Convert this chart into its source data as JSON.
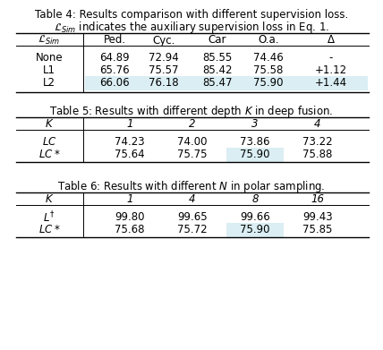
{
  "bg_color": "#ffffff",
  "highlight_color": "#daeef3",
  "fig_width": 4.28,
  "fig_height": 3.91,
  "dpi": 100,
  "table4": {
    "caption_line1": "Table 4: Results comparison with different supervision loss.",
    "caption_line2": "$\\mathcal{L}_{Sim}$ indicates the auxiliary supervision loss in Eq. 1.",
    "col_headers": [
      "$\\mathcal{L}_{Sim}$",
      "Ped.",
      "Cyc.",
      "Car",
      "O.a.",
      "$\\Delta$"
    ],
    "col_italic": [
      true,
      false,
      false,
      false,
      false,
      false
    ],
    "rows": [
      [
        "None",
        "64.89",
        "72.94",
        "85.55",
        "74.46",
        "-"
      ],
      [
        "L1",
        "65.76",
        "75.57",
        "85.42",
        "75.58",
        "+1.12"
      ],
      [
        "L2",
        "66.06",
        "76.18",
        "85.47",
        "75.90",
        "+1.44"
      ]
    ],
    "highlight_row": 2,
    "highlight_full_row": true
  },
  "table5": {
    "caption": "Table 5: Results with different depth $K$ in deep fusion.",
    "col_headers": [
      "$K$",
      "1",
      "2",
      "3",
      "4"
    ],
    "col_italic": [
      true,
      false,
      false,
      false,
      false
    ],
    "rows": [
      [
        "$LC$",
        "74.23",
        "74.00",
        "73.86",
        "73.22"
      ],
      [
        "$LC*$",
        "75.64",
        "75.75",
        "75.90",
        "75.88"
      ]
    ],
    "row_italic": [
      true,
      true
    ],
    "highlight_row": 1,
    "highlight_col": 3
  },
  "table6": {
    "caption": "Table 6: Results with different $N$ in polar sampling.",
    "col_headers": [
      "$K$",
      "1",
      "4",
      "8",
      "16"
    ],
    "col_italic": [
      true,
      false,
      false,
      false,
      false
    ],
    "rows": [
      [
        "$L^{\\dagger}$",
        "99.80",
        "99.65",
        "99.66",
        "99.43"
      ],
      [
        "$LC*$",
        "75.68",
        "75.72",
        "75.90",
        "75.85"
      ]
    ],
    "row_italic": [
      true,
      true
    ],
    "highlight_row": 1,
    "highlight_col": 3
  }
}
